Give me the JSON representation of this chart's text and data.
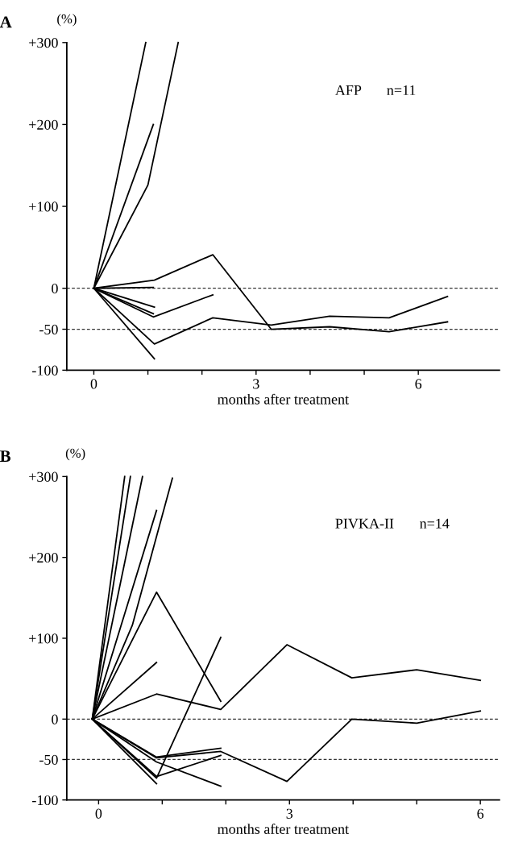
{
  "chart_data": [
    {
      "type": "line",
      "title": "A",
      "ylabel": "(%)",
      "xlabel": "months after treatment",
      "annotations": [
        "AFP       n=11"
      ],
      "xlim": [
        -0.5,
        7.5
      ],
      "ylim": [
        -100,
        300
      ],
      "xticks": [
        0,
        {
          "value": 1,
          "label": null
        },
        {
          "value": 2,
          "label": null
        },
        3,
        {
          "value": 4,
          "label": null
        },
        {
          "value": 5,
          "label": null
        },
        6
      ],
      "yticks": [
        -100,
        -50,
        0,
        {
          "value": 100,
          "label": "+100"
        },
        {
          "value": 200,
          "label": "+200"
        },
        {
          "value": 300,
          "label": "+300"
        }
      ],
      "ref_lines": [
        {
          "axis": "y",
          "value": 0,
          "color": "#333333",
          "line_style": "dashed"
        },
        {
          "axis": "y",
          "value": -50,
          "color": "#333333",
          "line_style": "dashed"
        }
      ],
      "grid": false,
      "marker": "none",
      "line_style": "solid",
      "series": [
        {
          "color": "#000000",
          "x": [
            0,
            0.96
          ],
          "values": [
            0,
            300
          ]
        },
        {
          "color": "#000000",
          "x": [
            0,
            1.1
          ],
          "values": [
            0,
            200
          ]
        },
        {
          "color": "#000000",
          "x": [
            0,
            1.0,
            1.56
          ],
          "values": [
            0,
            126,
            300
          ]
        },
        {
          "color": "#000000",
          "x": [
            0,
            1.12,
            2.2,
            3.28,
            4.36,
            5.46,
            6.54
          ],
          "values": [
            0,
            10,
            41,
            -50,
            -47,
            -53,
            -41
          ]
        },
        {
          "color": "#000000",
          "x": [
            0,
            1.1
          ],
          "values": [
            0,
            1
          ]
        },
        {
          "color": "#000000",
          "x": [
            0,
            1.12
          ],
          "values": [
            0,
            -23
          ]
        },
        {
          "color": "#000000",
          "x": [
            0,
            1.1
          ],
          "values": [
            0,
            -31
          ]
        },
        {
          "color": "#000000",
          "x": [
            0,
            1.1,
            2.2
          ],
          "values": [
            0,
            -35,
            -8
          ]
        },
        {
          "color": "#000000",
          "x": [
            0,
            1.12,
            2.2,
            3.28,
            4.36,
            5.46,
            6.54
          ],
          "values": [
            0,
            -68,
            -36,
            -45,
            -34,
            -36,
            -10
          ]
        },
        {
          "color": "#000000",
          "x": [
            0,
            1.12
          ],
          "values": [
            0,
            -86
          ]
        }
      ]
    },
    {
      "type": "line",
      "title": "B",
      "ylabel": "(%)",
      "xlabel": "months after treatment",
      "annotations": [
        "PIVKA-II       n=14"
      ],
      "xlim": [
        -0.5,
        6.3
      ],
      "ylim": [
        -100,
        300
      ],
      "xticks": [
        0,
        {
          "value": 1,
          "label": null
        },
        {
          "value": 2,
          "label": null
        },
        3,
        {
          "value": 4,
          "label": null
        },
        {
          "value": 5,
          "label": null
        },
        6
      ],
      "yticks": [
        -100,
        -50,
        0,
        {
          "value": 100,
          "label": "+100"
        },
        {
          "value": 200,
          "label": "+200"
        },
        {
          "value": 300,
          "label": "+300"
        }
      ],
      "ref_lines": [
        {
          "axis": "y",
          "value": 0,
          "color": "#333333",
          "line_style": "dashed"
        },
        {
          "axis": "y",
          "value": -50,
          "color": "#333333",
          "line_style": "dashed"
        }
      ],
      "grid": false,
      "marker": "none",
      "line_style": "solid",
      "series": [
        {
          "color": "#000000",
          "x": [
            -0.1,
            0.41
          ],
          "values": [
            0,
            300
          ]
        },
        {
          "color": "#000000",
          "x": [
            -0.1,
            0.5
          ],
          "values": [
            0,
            300
          ]
        },
        {
          "color": "#000000",
          "x": [
            -0.1,
            0.69
          ],
          "values": [
            0,
            300
          ]
        },
        {
          "color": "#000000",
          "x": [
            -0.1,
            0.91
          ],
          "values": [
            0,
            258
          ]
        },
        {
          "color": "#000000",
          "x": [
            -0.1,
            0.53,
            1.16
          ],
          "values": [
            0,
            116,
            298
          ]
        },
        {
          "color": "#000000",
          "x": [
            -0.1,
            0.91,
            1.92
          ],
          "values": [
            0,
            157,
            22
          ]
        },
        {
          "color": "#000000",
          "x": [
            -0.1,
            0.91
          ],
          "values": [
            0,
            70
          ]
        },
        {
          "color": "#000000",
          "x": [
            -0.1,
            0.91,
            1.92,
            2.96,
            3.98,
            5.0,
            6.0
          ],
          "values": [
            0,
            31,
            12,
            92,
            51,
            61,
            48
          ]
        },
        {
          "color": "#000000",
          "x": [
            -0.1,
            0.91,
            1.92
          ],
          "values": [
            0,
            -47,
            -36
          ]
        },
        {
          "color": "#000000",
          "x": [
            -0.1,
            0.91,
            1.92,
            2.96,
            3.98,
            5.0,
            6.0
          ],
          "values": [
            0,
            -48,
            -40,
            -77,
            0,
            -5,
            10
          ]
        },
        {
          "color": "#000000",
          "x": [
            -0.1,
            0.91,
            1.92
          ],
          "values": [
            0,
            -53,
            -83
          ]
        },
        {
          "color": "#000000",
          "x": [
            -0.1,
            0.91,
            1.92
          ],
          "values": [
            0,
            -71,
            -45
          ]
        },
        {
          "color": "#000000",
          "x": [
            -0.1,
            0.91
          ],
          "values": [
            0,
            -80
          ]
        },
        {
          "color": "#000000",
          "x": [
            -0.1,
            0.91,
            1.92
          ],
          "values": [
            0,
            -73,
            101
          ]
        }
      ]
    }
  ]
}
